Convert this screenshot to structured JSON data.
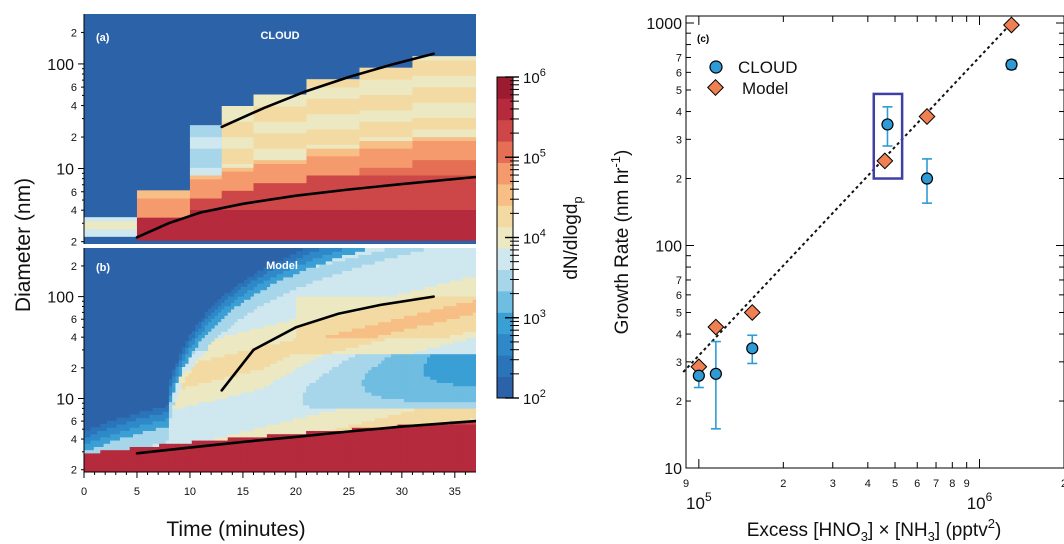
{
  "chart_data": [
    {
      "type": "heatmap",
      "panel_label": "(a)",
      "title": "CLOUD",
      "ylabel": "Diameter (nm)",
      "xlim": [
        0,
        37
      ],
      "ylim": [
        1.9,
        300
      ],
      "yscale": "log",
      "x_ticks": [
        "0",
        "5",
        "10",
        "15",
        "20",
        "25",
        "30",
        "35"
      ],
      "y_major_ticks": [
        {
          "value": 10,
          "label": "10"
        },
        {
          "value": 100,
          "label": "100"
        }
      ],
      "y_minor_ticks": [
        {
          "value": 2,
          "label": "2"
        },
        {
          "value": 4,
          "label": "4"
        },
        {
          "value": 6,
          "label": "6"
        },
        {
          "value": 20,
          "label": "2"
        },
        {
          "value": 40,
          "label": "4"
        },
        {
          "value": 60,
          "label": "6"
        },
        {
          "value": 200,
          "label": "2"
        }
      ],
      "fit_lines": [
        {
          "x": [
            13,
            17,
            21,
            25,
            29,
            33
          ],
          "y": [
            25,
            38,
            55,
            75,
            98,
            125
          ]
        },
        {
          "x": [
            5,
            8,
            11,
            15,
            20,
            25,
            30,
            37
          ],
          "y": [
            2.2,
            3.0,
            3.8,
            4.6,
            5.5,
            6.3,
            7.1,
            8.3
          ]
        }
      ]
    },
    {
      "type": "heatmap",
      "panel_label": "(b)",
      "title": "Model",
      "xlabel": "Time (minutes)",
      "ylabel": "Diameter (nm)",
      "xlim": [
        0,
        37
      ],
      "ylim": [
        1.9,
        300
      ],
      "yscale": "log",
      "x_ticks": [
        "0",
        "5",
        "10",
        "15",
        "20",
        "25",
        "30",
        "35"
      ],
      "y_major_ticks": [
        {
          "value": 10,
          "label": "10"
        },
        {
          "value": 100,
          "label": "100"
        }
      ],
      "y_minor_ticks": [
        {
          "value": 2,
          "label": "2"
        },
        {
          "value": 4,
          "label": "4"
        },
        {
          "value": 6,
          "label": "6"
        },
        {
          "value": 20,
          "label": "2"
        },
        {
          "value": 40,
          "label": "4"
        },
        {
          "value": 60,
          "label": "6"
        },
        {
          "value": 200,
          "label": "2"
        }
      ],
      "fit_lines": [
        {
          "x": [
            13,
            16,
            20,
            24,
            28,
            33
          ],
          "y": [
            12,
            30,
            50,
            68,
            83,
            100
          ]
        },
        {
          "x": [
            5,
            10,
            15,
            20,
            25,
            30,
            37
          ],
          "y": [
            2.9,
            3.3,
            3.75,
            4.2,
            4.75,
            5.3,
            6.0
          ]
        }
      ]
    },
    {
      "type": "scatter",
      "panel_label": "(c)",
      "xlabel": "Excess [HNO3] × [NH3] (pptv2)",
      "ylabel": "Growth Rate (nm hr-1)",
      "xscale": "log",
      "yscale": "log",
      "xlim": [
        90000,
        2000000
      ],
      "ylim": [
        10,
        1000
      ],
      "x_tick_labels": [
        "9",
        "2",
        "3",
        "4",
        "5",
        "6",
        "7",
        "8",
        "9",
        "2"
      ],
      "x_major_labels": [
        "10^5",
        "10^6"
      ],
      "y_major_labels": [
        "10",
        "100",
        "1000"
      ],
      "y_minor_labels": [
        "2",
        "3",
        "4",
        "5",
        "6",
        "7",
        "2",
        "3",
        "4",
        "5",
        "6",
        "7"
      ],
      "legend": {
        "position": "top-left"
      },
      "series": [
        {
          "name": "CLOUD",
          "color": "#2e9bd6",
          "marker": "circle",
          "x": [
            100000,
            115000,
            155000,
            470000,
            650000,
            1300000
          ],
          "y": [
            26,
            26.5,
            34.5,
            350,
            200,
            650
          ],
          "y_err_low": [
            23,
            15,
            29.5,
            280,
            155,
            620
          ],
          "y_err_high": [
            29,
            37,
            39.5,
            420,
            245,
            680
          ]
        },
        {
          "name": "Model",
          "color": "#f07f52",
          "marker": "diamond",
          "x": [
            100000,
            115000,
            155000,
            460000,
            650000,
            1300000
          ],
          "y": [
            28.5,
            43,
            50,
            240,
            380,
            980
          ]
        }
      ],
      "fit_line": {
        "style": "dotted",
        "x": [
          88000,
          1300000
        ],
        "y": [
          27,
          1000
        ]
      },
      "highlight_box": {
        "x_range": [
          420000,
          530000
        ],
        "y_range": [
          200,
          480
        ]
      }
    }
  ],
  "colorbar": {
    "label": "dN/dlogdp",
    "scale": "log",
    "range": [
      100,
      1000000
    ],
    "tick_labels": [
      "10^2",
      "10^3",
      "10^4",
      "10^5",
      "10^6"
    ],
    "colors": [
      "#2c62a8",
      "#2b74b9",
      "#2f89c8",
      "#3a9fd5",
      "#6fbde0",
      "#a7d6ea",
      "#cfe7ef",
      "#ece8c2",
      "#f3d9a2",
      "#f7be85",
      "#f49a6c",
      "#e56f55",
      "#cd4648",
      "#b52a3c",
      "#9c1b31"
    ]
  },
  "texts": {
    "xlabel_main": "Time (minutes)",
    "ylabel_main": "Diameter (nm)",
    "c_xlabel_prefix": "Excess [HNO",
    "c_xlabel_sub1": "3",
    "c_xlabel_mid": "] × [NH",
    "c_xlabel_sub2": "3",
    "c_xlabel_tail": "] (pptv",
    "c_xlabel_sup": "2",
    "c_xlabel_end": ")",
    "c_ylabel_prefix": "Growth Rate (nm hr",
    "c_ylabel_sup": "-1",
    "c_ylabel_end": ")",
    "cb_prefix": "dN/dlogd",
    "cb_sub": "p"
  }
}
